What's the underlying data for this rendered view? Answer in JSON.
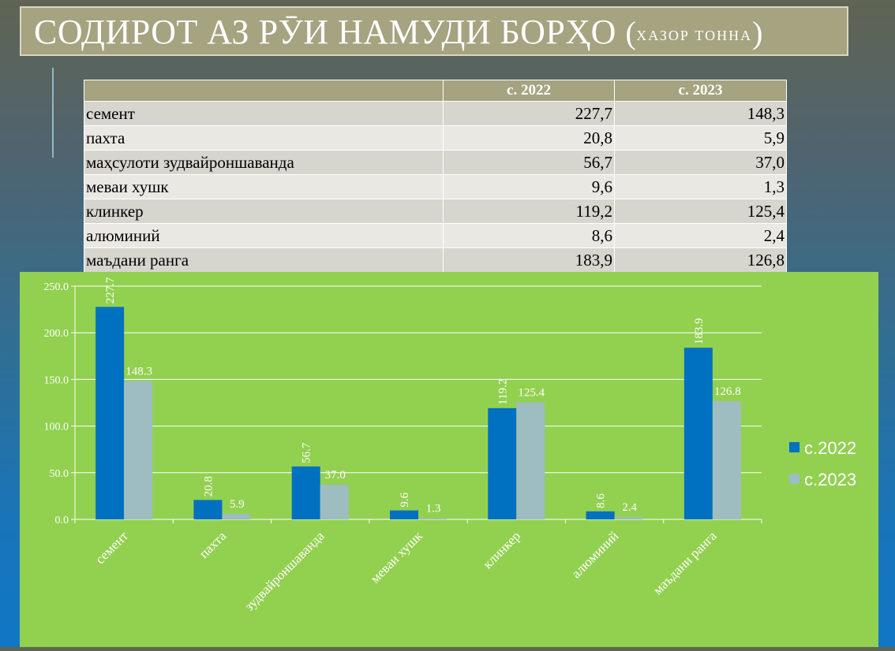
{
  "title": {
    "main": "СОДИРОТ АЗ РӮИ НАМУДИ БОРҲО",
    "open_paren": "(",
    "unit": "ХАЗОР ТОННА",
    "close_paren": ")"
  },
  "table": {
    "headers": [
      "",
      "с. 2022",
      "с. 2023"
    ],
    "rows": [
      {
        "name": "семент",
        "v2022": "227,7",
        "v2023": "148,3"
      },
      {
        "name": "пахта",
        "v2022": "20,8",
        "v2023": "5,9"
      },
      {
        "name": "маҳсулоти зудвайроншаванда",
        "v2022": "56,7",
        "v2023": "37,0"
      },
      {
        "name": "меваи хушк",
        "v2022": "9,6",
        "v2023": "1,3"
      },
      {
        "name": "клинкер",
        "v2022": "119,2",
        "v2023": "125,4"
      },
      {
        "name": "алюминий",
        "v2022": "8,6",
        "v2023": "2,4"
      },
      {
        "name": "маъдани ранга",
        "v2022": "183,9",
        "v2023": "126,8"
      }
    ]
  },
  "chart_data": {
    "type": "bar",
    "categories": [
      "семент",
      "пахта",
      "зудвайроншаванда",
      "меваи хушк",
      "клинкер",
      "алюминий",
      "маъдани ранга"
    ],
    "series": [
      {
        "name": "с.2022",
        "values": [
          227.7,
          20.8,
          56.7,
          9.6,
          119.2,
          8.6,
          183.9
        ],
        "color": "#0070c0"
      },
      {
        "name": "с.2023",
        "values": [
          148.3,
          5.9,
          37.0,
          1.3,
          125.4,
          2.4,
          126.8
        ],
        "color": "#9dbdc0"
      }
    ],
    "data_labels": [
      [
        "227.7",
        "20.8",
        "56.7",
        "9.6",
        "119.2",
        "8.6",
        "183.9"
      ],
      [
        "148.3",
        "5.9",
        "37.0",
        "1.3",
        "125.4",
        "2.4",
        "126.8"
      ]
    ],
    "ylim": [
      0,
      250
    ],
    "yticks": [
      "0.0",
      "50.0",
      "100.0",
      "150.0",
      "200.0",
      "250.0"
    ],
    "title": "",
    "xlabel": "",
    "ylabel": "",
    "grid": true,
    "legend": "right",
    "background": "#92d050"
  }
}
